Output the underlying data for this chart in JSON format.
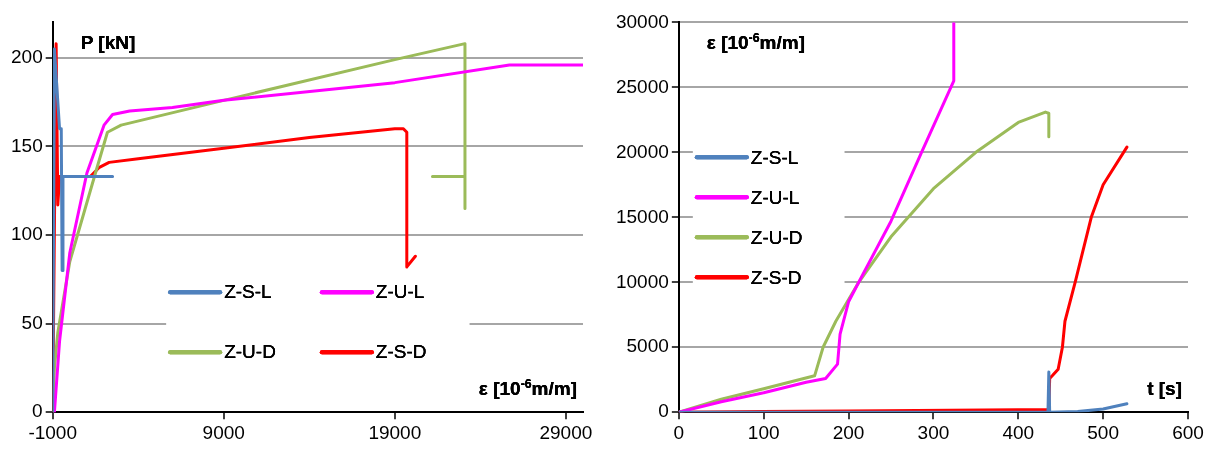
{
  "chart_data": [
    {
      "type": "line",
      "xlabel": "ε [10$^{-6}$m/m]",
      "ylabel": "P [kN]",
      "xlim": [
        -1000,
        30000
      ],
      "xticks": [
        -1000,
        9000,
        19000,
        29000
      ],
      "ylim": [
        0,
        220
      ],
      "yticks": [
        0,
        50,
        100,
        150,
        200
      ],
      "grid": "y",
      "legend": "bottom",
      "marker": "none",
      "line_style": "solid",
      "series": [
        {
          "name": "Z-S-L",
          "color": "#4f81bd",
          "x": [
            -1000,
            -900,
            -600,
            -500,
            -450,
            -400,
            2500
          ],
          "values": [
            0,
            205,
            160,
            160,
            80,
            133,
            133
          ]
        },
        {
          "name": "Z-U-L",
          "color": "#ff00ff",
          "x": [
            -900,
            -600,
            0,
            1000,
            2000,
            2500,
            3500,
            6000,
            9000,
            19000,
            25700,
            30000
          ],
          "values": [
            0,
            40,
            90,
            135,
            162,
            168,
            170,
            172,
            176,
            186,
            196,
            196
          ]
        },
        {
          "name": "Z-U-D",
          "color": "#9bbb59",
          "x": [
            -1000,
            -900,
            -700,
            0,
            1500,
            2200,
            3000,
            9000,
            19000,
            23100,
            23100,
            null,
            21200,
            23100
          ],
          "values": [
            0,
            25,
            45,
            85,
            135,
            158,
            162,
            176,
            199,
            208,
            115,
            null,
            133,
            133
          ]
        },
        {
          "name": "Z-S-D",
          "color": "#ff0000",
          "x": [
            -1000,
            -800,
            -700,
            -600,
            1200,
            1700,
            2300,
            4000,
            9000,
            14000,
            19000,
            19500,
            19700,
            19700,
            20200
          ],
          "values": [
            0,
            208,
            117,
            133,
            133,
            138,
            141,
            143,
            149,
            155,
            160,
            160,
            158,
            82,
            88
          ]
        }
      ]
    },
    {
      "type": "line",
      "xlabel": "t [s]",
      "ylabel": "ε [10$^{-6}$m/m]",
      "xlim": [
        0,
        600
      ],
      "xticks": [
        0,
        100,
        200,
        300,
        400,
        500,
        600
      ],
      "ylim": [
        0,
        30000
      ],
      "yticks": [
        0,
        5000,
        10000,
        15000,
        20000,
        25000,
        30000
      ],
      "grid": "y",
      "legend": "left",
      "marker": "none",
      "line_style": "solid",
      "series": [
        {
          "name": "Z-S-L",
          "color": "#4f81bd",
          "x": [
            0,
            435,
            436,
            437,
            470,
            500,
            528
          ],
          "values": [
            0,
            0,
            3100,
            0,
            50,
            250,
            650
          ]
        },
        {
          "name": "Z-U-L",
          "color": "#ff00ff",
          "x": [
            0,
            50,
            100,
            150,
            173,
            187,
            190,
            200,
            212,
            250,
            286,
            324,
            324
          ],
          "values": [
            0,
            800,
            1500,
            2300,
            2600,
            3700,
            6000,
            8500,
            10000,
            14700,
            20000,
            25500,
            30000
          ]
        },
        {
          "name": "Z-U-D",
          "color": "#9bbb59",
          "x": [
            0,
            50,
            100,
            160,
            170,
            185,
            212,
            250,
            300,
            350,
            400,
            432,
            436,
            436
          ],
          "values": [
            0,
            1000,
            1800,
            2800,
            5000,
            7000,
            10000,
            13500,
            17200,
            20000,
            22300,
            23100,
            23000,
            21200
          ]
        },
        {
          "name": "Z-S-D",
          "color": "#ff0000",
          "x": [
            0,
            200,
            435,
            436,
            437,
            440,
            447,
            452,
            455,
            467,
            486,
            500,
            528
          ],
          "values": [
            0,
            100,
            200,
            250,
            2600,
            2800,
            3300,
            5000,
            7000,
            10000,
            15000,
            17500,
            20400
          ]
        }
      ]
    }
  ]
}
